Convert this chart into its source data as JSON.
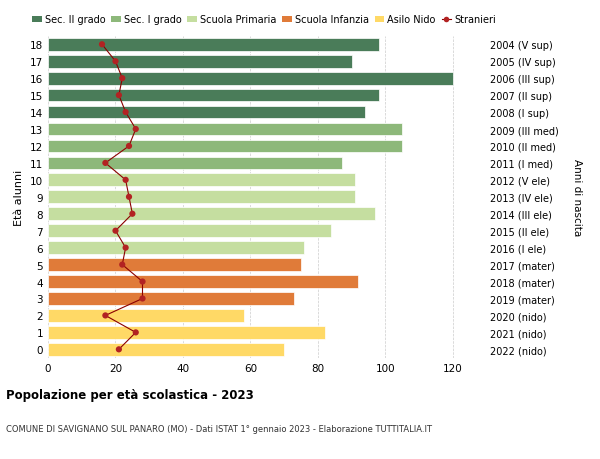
{
  "ages": [
    0,
    1,
    2,
    3,
    4,
    5,
    6,
    7,
    8,
    9,
    10,
    11,
    12,
    13,
    14,
    15,
    16,
    17,
    18
  ],
  "right_labels": [
    "2022 (nido)",
    "2021 (nido)",
    "2020 (nido)",
    "2019 (mater)",
    "2018 (mater)",
    "2017 (mater)",
    "2016 (I ele)",
    "2015 (II ele)",
    "2014 (III ele)",
    "2013 (IV ele)",
    "2012 (V ele)",
    "2011 (I med)",
    "2010 (II med)",
    "2009 (III med)",
    "2008 (I sup)",
    "2007 (II sup)",
    "2006 (III sup)",
    "2005 (IV sup)",
    "2004 (V sup)"
  ],
  "bar_values": [
    70,
    82,
    58,
    73,
    92,
    75,
    76,
    84,
    97,
    91,
    91,
    87,
    105,
    105,
    94,
    98,
    120,
    90,
    98
  ],
  "bar_colors": [
    "#ffd966",
    "#ffd966",
    "#ffd966",
    "#e07b39",
    "#e07b39",
    "#e07b39",
    "#c5dea0",
    "#c5dea0",
    "#c5dea0",
    "#c5dea0",
    "#c5dea0",
    "#8db87a",
    "#8db87a",
    "#8db87a",
    "#4a7c59",
    "#4a7c59",
    "#4a7c59",
    "#4a7c59",
    "#4a7c59"
  ],
  "stranieri_values": [
    21,
    26,
    17,
    28,
    28,
    22,
    23,
    20,
    25,
    24,
    23,
    17,
    24,
    26,
    23,
    21,
    22,
    20,
    16
  ],
  "title": "Popolazione per età scolastica - 2023",
  "subtitle": "COMUNE DI SAVIGNANO SUL PANARO (MO) - Dati ISTAT 1° gennaio 2023 - Elaborazione TUTTITALIA.IT",
  "ylabel": "Età alunni",
  "right_ylabel": "Anni di nascita",
  "xlim": [
    0,
    128
  ],
  "xticks": [
    0,
    20,
    40,
    60,
    80,
    100,
    120
  ],
  "legend_labels": [
    "Sec. II grado",
    "Sec. I grado",
    "Scuola Primaria",
    "Scuola Infanzia",
    "Asilo Nido",
    "Stranieri"
  ],
  "legend_colors": [
    "#4a7c59",
    "#8db87a",
    "#c5dea0",
    "#e07b39",
    "#ffd966",
    "#b22222"
  ],
  "bar_height": 0.75,
  "background_color": "#ffffff",
  "grid_color": "#cccccc",
  "stranieri_line_color": "#8b0000",
  "stranieri_dot_color": "#b22222"
}
